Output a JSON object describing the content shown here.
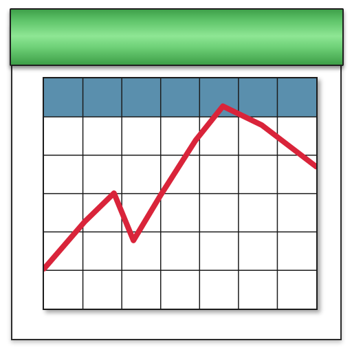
{
  "icon": {
    "kind": "line-chart-icon",
    "colors": {
      "header_green": "#5fc46a",
      "table_header_blue": "#5a8fad",
      "line_red": "#d9243a",
      "grid_line": "#1b1b1b",
      "frame_border": "#2b2b2b"
    },
    "grid": {
      "columns": 7,
      "body_rows": 5
    }
  },
  "chart_data": {
    "type": "line",
    "x": [
      0,
      1,
      2,
      3,
      4,
      5,
      6,
      7
    ],
    "values": [
      [
        0.0,
        0.0
      ],
      [
        1.05,
        1.25
      ],
      [
        1.8,
        2.0
      ],
      [
        2.3,
        0.75
      ],
      [
        3.0,
        1.95
      ],
      [
        3.9,
        3.4
      ],
      [
        4.6,
        4.3
      ],
      [
        5.6,
        3.8
      ],
      [
        7.0,
        2.7
      ]
    ],
    "xlim": [
      0,
      7
    ],
    "ylim": [
      0,
      5
    ],
    "grid": true
  }
}
